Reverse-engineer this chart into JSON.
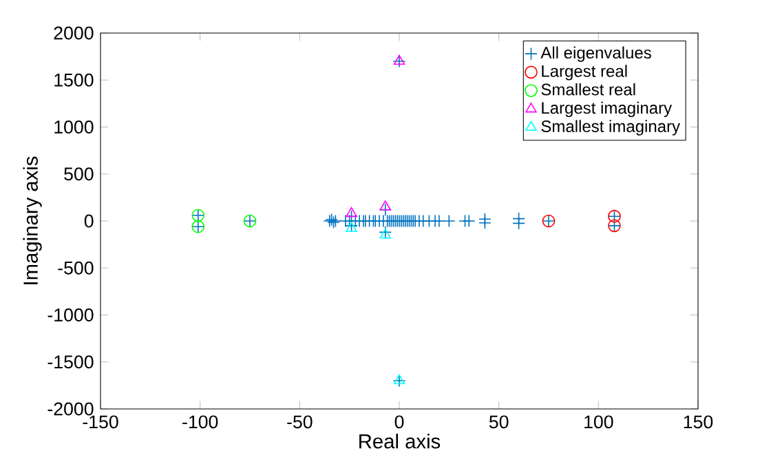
{
  "chart_data": {
    "type": "scatter",
    "xlabel": "Real axis",
    "ylabel": "Imaginary axis",
    "xlim": [
      -150,
      150
    ],
    "ylim": [
      -2000,
      2000
    ],
    "xticks": [
      -150,
      -100,
      -50,
      0,
      50,
      100,
      150
    ],
    "yticks": [
      -2000,
      -1500,
      -1000,
      -500,
      0,
      500,
      1000,
      1500,
      2000
    ],
    "legend": "top right",
    "grid": false,
    "series": [
      {
        "name": "All eigenvalues",
        "color": "#0072bd",
        "marker": "cross",
        "x": [
          -101,
          -101,
          -75,
          -35,
          -34,
          -33,
          -32,
          -27,
          -25,
          -24,
          -24,
          -22,
          -20,
          -18,
          -17,
          -15,
          -13,
          -12,
          -10,
          -8,
          -7,
          -7,
          -6,
          -5,
          -4,
          -3,
          -2,
          -1,
          0,
          0,
          0,
          1,
          2,
          3,
          4,
          5,
          6,
          7,
          8,
          10,
          12,
          15,
          18,
          20,
          25,
          33,
          35,
          43,
          43,
          60,
          60,
          75,
          108,
          108
        ],
        "values": [
          60,
          -60,
          0,
          0,
          15,
          -15,
          0,
          0,
          0,
          50,
          -50,
          0,
          0,
          0,
          0,
          0,
          0,
          0,
          0,
          0,
          120,
          -120,
          0,
          0,
          0,
          0,
          0,
          0,
          1700,
          -1700,
          0,
          0,
          0,
          0,
          0,
          0,
          0,
          0,
          0,
          0,
          0,
          0,
          0,
          0,
          0,
          0,
          0,
          20,
          -20,
          25,
          -25,
          0,
          50,
          -50
        ]
      },
      {
        "name": "Largest real",
        "color": "#ff0000",
        "marker": "circle",
        "x": [
          75,
          108,
          108
        ],
        "values": [
          0,
          50,
          -50
        ]
      },
      {
        "name": "Smallest real",
        "color": "#00ff00",
        "marker": "circle",
        "x": [
          -101,
          -101,
          -75
        ],
        "values": [
          60,
          -60,
          0
        ]
      },
      {
        "name": "Largest imaginary",
        "color": "#ff00ff",
        "marker": "triangle",
        "x": [
          0,
          -24,
          -7
        ],
        "values": [
          1700,
          80,
          150
        ]
      },
      {
        "name": "Smallest imaginary",
        "color": "#00ffff",
        "marker": "triangle",
        "x": [
          0,
          -24,
          -7
        ],
        "values": [
          -1700,
          -80,
          -150
        ]
      }
    ]
  }
}
